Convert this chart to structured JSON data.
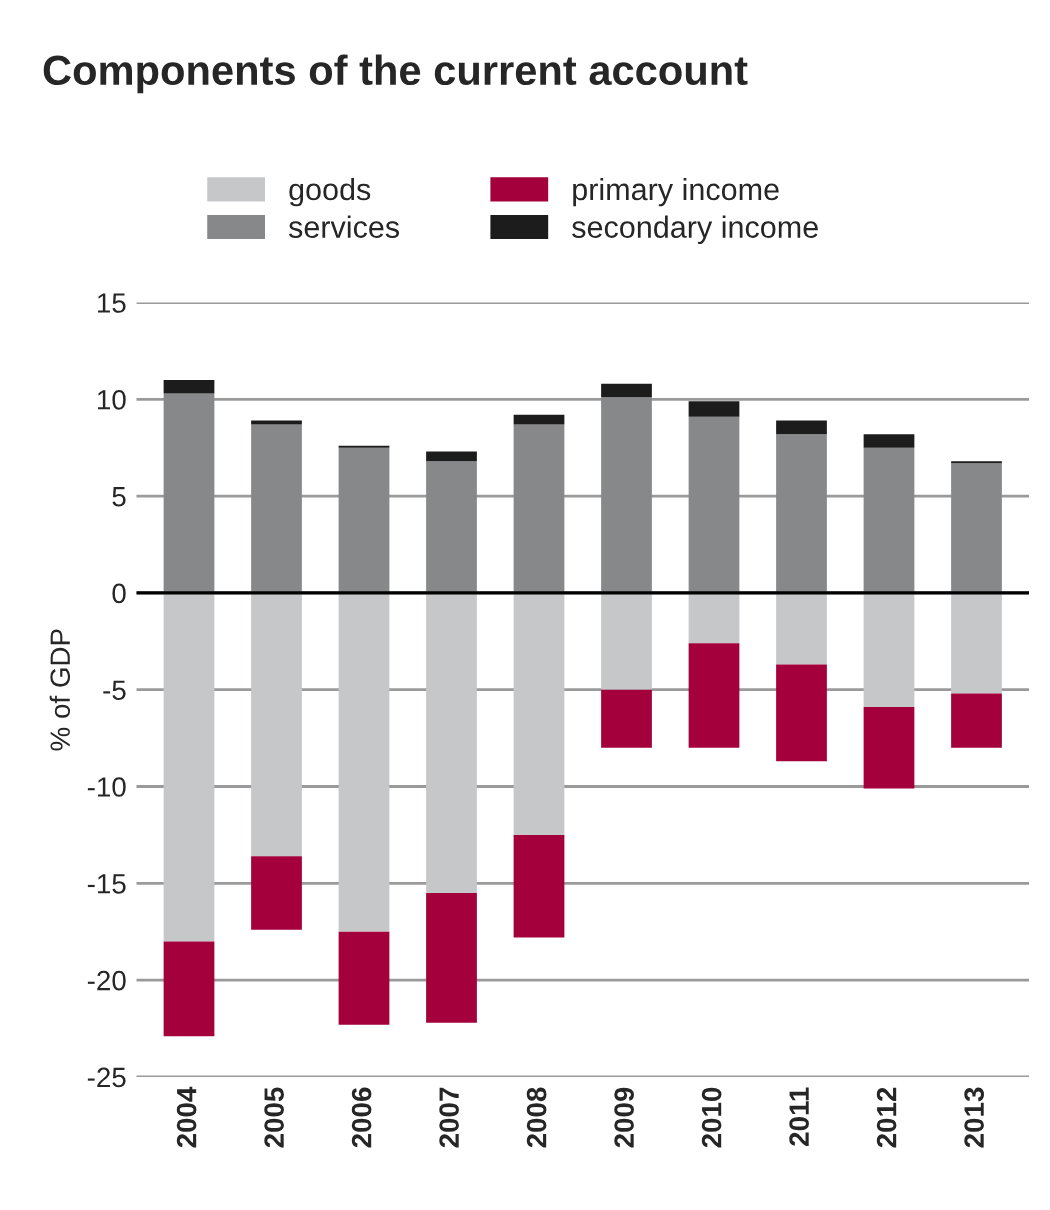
{
  "chart_data": {
    "type": "bar",
    "title": "Components of the current account",
    "ylabel": "% of GDP",
    "categories": [
      "2004",
      "2005",
      "2006",
      "2007",
      "2008",
      "2009",
      "2010",
      "2011",
      "2012",
      "2013"
    ],
    "stacked": true,
    "series": [
      {
        "name": "goods",
        "color": "#c6c7c9",
        "values": [
          -18.0,
          -13.6,
          -17.5,
          -15.5,
          -12.5,
          -5.0,
          -2.6,
          -3.7,
          -5.9,
          -5.2
        ]
      },
      {
        "name": "services",
        "color": "#87888a",
        "values": [
          10.3,
          8.7,
          7.5,
          6.8,
          8.7,
          10.1,
          9.1,
          8.2,
          7.5,
          6.7
        ]
      },
      {
        "name": "primary income",
        "color": "#a3003c",
        "values": [
          -4.9,
          -3.8,
          -4.8,
          -6.7,
          -5.3,
          -3.0,
          -5.4,
          -5.0,
          -4.2,
          -2.8
        ]
      },
      {
        "name": "secondary income",
        "color": "#1c1c1c",
        "values": [
          0.7,
          0.2,
          0.1,
          0.5,
          0.5,
          0.7,
          0.8,
          0.7,
          0.7,
          0.1
        ]
      }
    ],
    "ylim": [
      -25,
      15
    ],
    "yticks": [
      -25,
      -20,
      -15,
      -10,
      -5,
      0,
      5,
      10,
      15
    ],
    "grid": "y",
    "legend": "top"
  }
}
